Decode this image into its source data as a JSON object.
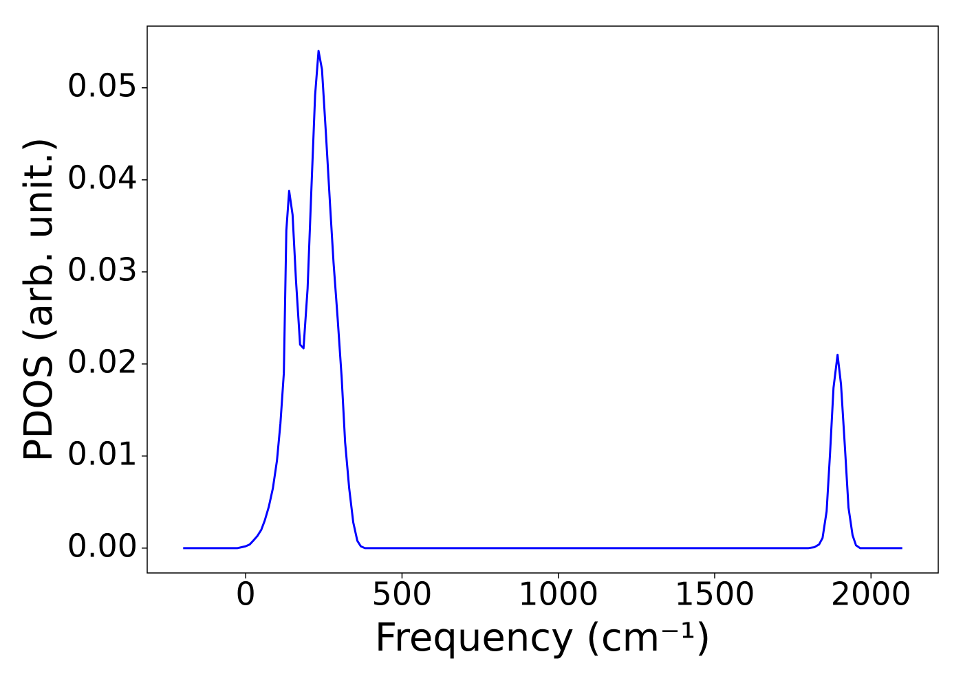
{
  "chart_data": {
    "type": "line",
    "xlabel": "Frequency (cm⁻¹)",
    "ylabel": "PDOS (arb. unit.)",
    "color": "#0000ff",
    "x": [
      -200,
      -26,
      -13,
      0,
      13,
      24,
      37,
      50,
      61,
      74,
      87,
      100,
      111,
      122,
      130,
      139,
      150,
      161,
      174,
      185,
      198,
      209,
      222,
      233,
      244,
      257,
      270,
      281,
      294,
      307,
      318,
      331,
      344,
      357,
      368,
      381,
      400,
      1800,
      1819,
      1834,
      1845,
      1858,
      1869,
      1880,
      1893,
      1904,
      1917,
      1928,
      1941,
      1952,
      1965,
      2100
    ],
    "values": [
      0,
      0,
      0.0001,
      0.0002,
      0.0004,
      0.0008,
      0.0013,
      0.002,
      0.003,
      0.0045,
      0.0065,
      0.0095,
      0.0135,
      0.019,
      0.0345,
      0.0388,
      0.0362,
      0.029,
      0.0221,
      0.0217,
      0.0282,
      0.038,
      0.0492,
      0.054,
      0.052,
      0.0448,
      0.0372,
      0.031,
      0.025,
      0.0185,
      0.0115,
      0.0065,
      0.0028,
      0.0008,
      0.0002,
      0,
      0,
      0,
      0.0001,
      0.0004,
      0.0011,
      0.004,
      0.0103,
      0.0174,
      0.021,
      0.0178,
      0.0107,
      0.0044,
      0.0014,
      0.0003,
      0,
      0
    ],
    "xlim": [
      -315,
      2215
    ],
    "ylim": [
      -0.0027,
      0.0567
    ],
    "xticks": [
      0,
      500,
      1000,
      1500,
      2000
    ],
    "yticks": [
      {
        "value": 0,
        "label": "0.00"
      },
      {
        "value": 0.01,
        "label": "0.01"
      },
      {
        "value": 0.02,
        "label": "0.02"
      },
      {
        "value": 0.03,
        "label": "0.03"
      },
      {
        "value": 0.04,
        "label": "0.04"
      },
      {
        "value": 0.05,
        "label": "0.05"
      }
    ],
    "grid": false
  }
}
